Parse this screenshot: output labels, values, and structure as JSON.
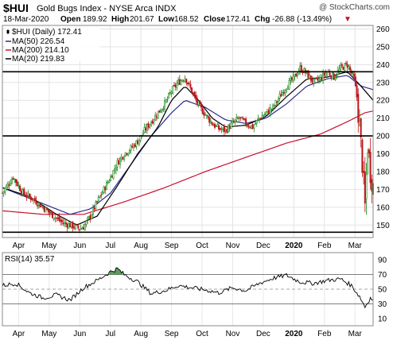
{
  "header": {
    "symbol": "$HUI",
    "name": "Gold Bugs Index - NYSE Arca INDX",
    "copyright": "@ StockCharts.com",
    "date": "18-Mar-2020",
    "open_label": "Open",
    "open": "189.92",
    "high_label": "High",
    "high": "201.67",
    "low_label": "Low",
    "low": "168.52",
    "close_label": "Close",
    "close": "172.41",
    "chg_label": "Chg",
    "chg": "-26.88 (-13.49%)",
    "chg_arrow": "▼"
  },
  "legend": [
    {
      "text": "$HUI (Daily) 172.41",
      "color": "#000000",
      "marker": "candle"
    },
    {
      "text": "MA(50) 226.54",
      "color": "#2b2e8c",
      "marker": "line"
    },
    {
      "text": "MA(200) 214.10",
      "color": "#c8102e",
      "marker": "line"
    },
    {
      "text": "MA(20) 219.83",
      "color": "#000000",
      "marker": "line"
    }
  ],
  "rsi_legend": {
    "text": "RSI(14) 35.57"
  },
  "colors": {
    "up": "#1a8a1a",
    "down": "#c0151a",
    "ma50": "#2b2e8c",
    "ma200": "#c8102e",
    "rsi_fill": "#5c9a5c"
  },
  "chart_data": [
    {
      "type": "candlestick",
      "x_labels": [
        "Apr",
        "May",
        "Jun",
        "Jul",
        "Aug",
        "Sep",
        "Oct",
        "Nov",
        "Dec",
        "2020",
        "Feb",
        "Mar"
      ],
      "y_ticks": [
        150,
        160,
        170,
        180,
        190,
        200,
        210,
        220,
        230,
        240,
        250,
        260
      ],
      "ylim": [
        143,
        262
      ],
      "horizontal_lines": [
        146,
        200,
        236
      ],
      "price_path": [
        [
          0,
          168
        ],
        [
          8,
          177
        ],
        [
          15,
          168
        ],
        [
          22,
          165
        ],
        [
          30,
          160
        ],
        [
          38,
          155
        ],
        [
          45,
          151
        ],
        [
          50,
          150
        ],
        [
          57,
          148
        ],
        [
          60,
          149
        ],
        [
          65,
          155
        ],
        [
          70,
          163
        ],
        [
          75,
          170
        ],
        [
          80,
          177
        ],
        [
          85,
          185
        ],
        [
          90,
          190
        ],
        [
          95,
          193
        ],
        [
          100,
          197
        ],
        [
          105,
          203
        ],
        [
          110,
          208
        ],
        [
          115,
          213
        ],
        [
          120,
          218
        ],
        [
          125,
          225
        ],
        [
          130,
          230
        ],
        [
          135,
          233
        ],
        [
          140,
          225
        ],
        [
          145,
          217
        ],
        [
          150,
          212
        ],
        [
          155,
          207
        ],
        [
          160,
          204
        ],
        [
          165,
          203
        ],
        [
          170,
          207
        ],
        [
          175,
          210
        ],
        [
          180,
          207
        ],
        [
          185,
          205
        ],
        [
          190,
          210
        ],
        [
          195,
          213
        ],
        [
          200,
          216
        ],
        [
          205,
          222
        ],
        [
          210,
          228
        ],
        [
          215,
          232
        ],
        [
          220,
          238
        ],
        [
          225,
          235
        ],
        [
          230,
          230
        ],
        [
          235,
          232
        ],
        [
          240,
          236
        ],
        [
          245,
          233
        ],
        [
          250,
          238
        ],
        [
          255,
          240
        ],
        [
          260,
          232
        ],
        [
          262,
          222
        ],
        [
          264,
          205
        ],
        [
          266,
          185
        ],
        [
          268,
          160
        ],
        [
          270,
          195
        ],
        [
          272,
          180
        ],
        [
          274,
          172
        ]
      ],
      "series": [
        {
          "name": "MA(50)",
          "values": [
            [
              0,
              171
            ],
            [
              30,
              162
            ],
            [
              50,
              156
            ],
            [
              65,
              159
            ],
            [
              80,
              168
            ],
            [
              95,
              184
            ],
            [
              110,
              200
            ],
            [
              125,
              213
            ],
            [
              135,
              220
            ],
            [
              150,
              216
            ],
            [
              165,
              209
            ],
            [
              180,
              207
            ],
            [
              195,
              210
            ],
            [
              210,
              218
            ],
            [
              225,
              228
            ],
            [
              240,
              232
            ],
            [
              255,
              234
            ],
            [
              265,
              228
            ],
            [
              274,
              226
            ]
          ]
        },
        {
          "name": "MA(200)",
          "values": [
            [
              0,
              158
            ],
            [
              30,
              156
            ],
            [
              60,
              156
            ],
            [
              90,
              163
            ],
            [
              120,
              171
            ],
            [
              150,
              180
            ],
            [
              180,
              188
            ],
            [
              210,
              196
            ],
            [
              235,
              201
            ],
            [
              255,
              208
            ],
            [
              268,
              213
            ],
            [
              274,
              214
            ]
          ]
        },
        {
          "name": "MA(20)",
          "values": [
            [
              0,
              171
            ],
            [
              20,
              166
            ],
            [
              40,
              156
            ],
            [
              55,
              150
            ],
            [
              70,
              155
            ],
            [
              85,
              172
            ],
            [
              100,
              190
            ],
            [
              115,
              205
            ],
            [
              125,
              220
            ],
            [
              135,
              228
            ],
            [
              145,
              220
            ],
            [
              155,
              210
            ],
            [
              165,
              205
            ],
            [
              180,
              206
            ],
            [
              195,
              211
            ],
            [
              210,
              222
            ],
            [
              225,
              232
            ],
            [
              240,
              233
            ],
            [
              255,
              236
            ],
            [
              265,
              228
            ],
            [
              274,
              220
            ]
          ]
        }
      ]
    },
    {
      "type": "line",
      "name": "RSI(14)",
      "y_ticks": [
        10,
        30,
        50,
        70,
        90
      ],
      "ylim": [
        0,
        100
      ],
      "reference_lines": [
        30,
        50,
        70
      ],
      "values": [
        [
          0,
          55
        ],
        [
          10,
          58
        ],
        [
          20,
          45
        ],
        [
          30,
          38
        ],
        [
          40,
          42
        ],
        [
          50,
          35
        ],
        [
          60,
          52
        ],
        [
          70,
          62
        ],
        [
          80,
          74
        ],
        [
          85,
          78
        ],
        [
          90,
          70
        ],
        [
          100,
          60
        ],
        [
          110,
          44
        ],
        [
          120,
          48
        ],
        [
          130,
          55
        ],
        [
          140,
          52
        ],
        [
          150,
          49
        ],
        [
          160,
          45
        ],
        [
          170,
          52
        ],
        [
          180,
          48
        ],
        [
          190,
          58
        ],
        [
          200,
          65
        ],
        [
          210,
          69
        ],
        [
          220,
          60
        ],
        [
          230,
          58
        ],
        [
          240,
          62
        ],
        [
          250,
          64
        ],
        [
          258,
          55
        ],
        [
          264,
          40
        ],
        [
          268,
          26
        ],
        [
          272,
          38
        ],
        [
          274,
          35.57
        ]
      ]
    }
  ]
}
